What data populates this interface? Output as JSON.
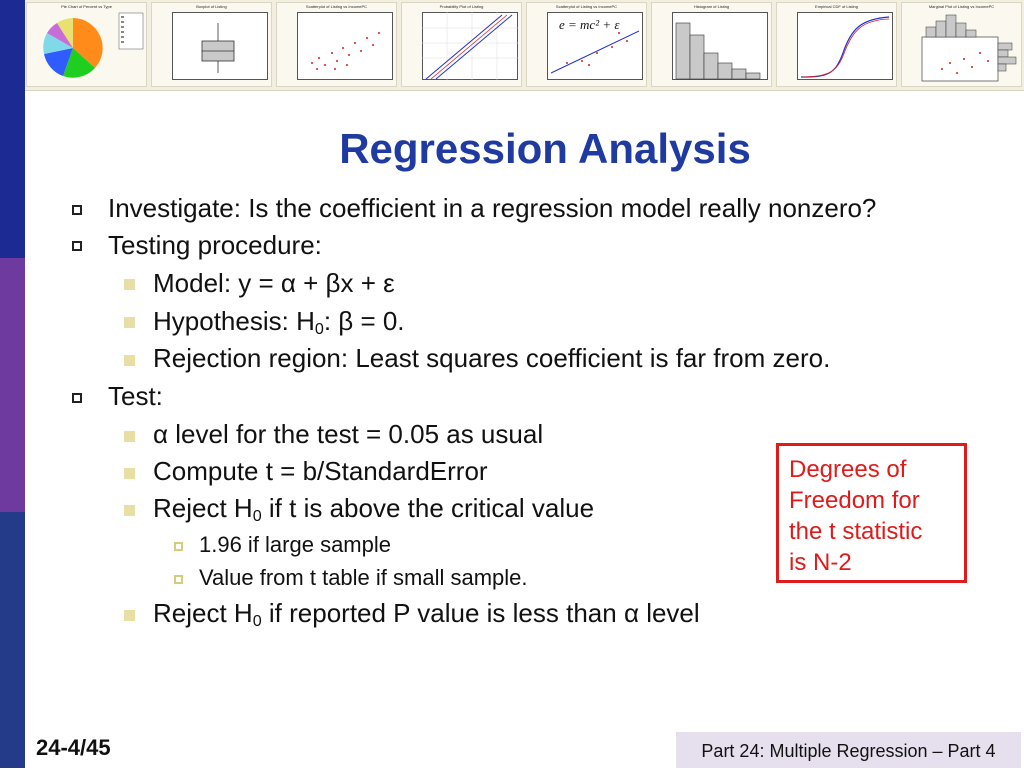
{
  "theme": {
    "title_color": "#1f3aa0",
    "callout_color": "#e01b1b",
    "sidebar_colors": [
      "#1c2a94",
      "#6f3aa0",
      "#243b8a"
    ]
  },
  "banner": {
    "thumbnails": [
      {
        "title": "Pie Chart of Percent vs Type",
        "icon": "pie-chart-icon"
      },
      {
        "title": "Boxplot of Listing",
        "icon": "boxplot-icon"
      },
      {
        "title": "Scatterplot of Listing vs IncomePC",
        "icon": "scatterplot-icon"
      },
      {
        "title": "Probability Plot of Listing",
        "icon": "probability-plot-icon"
      },
      {
        "title": "Scatterplot of Listing vs IncomePC",
        "icon": "regression-line-icon",
        "formula": "e = mc² + ε"
      },
      {
        "title": "Histogram of Listing",
        "icon": "histogram-icon"
      },
      {
        "title": "Empirical CDF of Listing",
        "icon": "cdf-icon"
      },
      {
        "title": "Marginal Plot of Listing vs IncomePC",
        "icon": "marginal-plot-icon"
      }
    ]
  },
  "slide": {
    "title": "Regression Analysis",
    "items": [
      {
        "text": "Investigate: Is the coefficient in a regression model really nonzero?"
      },
      {
        "text": "Testing procedure:"
      },
      {
        "text": "Model: y = α + βx + ε"
      },
      {
        "prefix": "Hypothesis:  H",
        "sub": "0",
        "suffix": ": β = 0."
      },
      {
        "text": "Rejection region:  Least squares coefficient is far from zero."
      },
      {
        "text": "Test:"
      },
      {
        "text": "α level for the test = 0.05 as usual"
      },
      {
        "text": "Compute t = b/StandardError"
      },
      {
        "prefix": "Reject H",
        "sub": "0",
        "suffix": " if t is above the critical value"
      },
      {
        "text": "1.96 if large sample"
      },
      {
        "text": "Value from t table if small sample."
      },
      {
        "prefix": "Reject H",
        "sub": "0",
        "suffix": " if reported P value is less than α level"
      }
    ],
    "callout": {
      "lines": [
        "Degrees of",
        "Freedom for",
        "the t statistic",
        "is N-2"
      ]
    }
  },
  "footer": {
    "page": "24-4/45",
    "section": "Part 24: Multiple Regression – Part 4"
  }
}
